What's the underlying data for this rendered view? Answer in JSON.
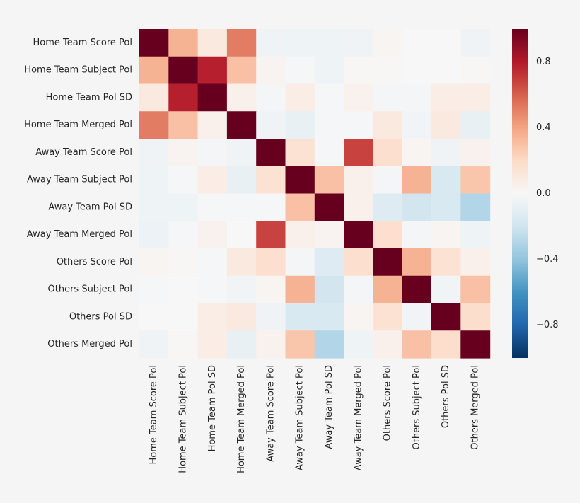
{
  "chart_data": {
    "type": "heatmap",
    "title": "",
    "xlabel": "",
    "ylabel": "",
    "row_labels": [
      "Home Team Score Pol",
      "Home Team Subject Pol",
      "Home Team Pol SD",
      "Home Team Merged Pol",
      "Away Team Score Pol",
      "Away Team Subject Pol",
      "Away Team Pol SD",
      "Away Team Merged Pol",
      "Others Score Pol",
      "Others Subject Pol",
      "Others Pol SD",
      "Others Merged Pol"
    ],
    "col_labels": [
      "Home Team Score Pol",
      "Home Team Subject Pol",
      "Home Team Pol SD",
      "Home Team Merged Pol",
      "Away Team Score Pol",
      "Away Team Subject Pol",
      "Away Team Pol SD",
      "Away Team Merged Pol",
      "Others Score Pol",
      "Others Subject Pol",
      "Others Pol SD",
      "Others Merged Pol"
    ],
    "values": [
      [
        1.0,
        0.35,
        0.1,
        0.52,
        -0.04,
        -0.05,
        -0.05,
        -0.04,
        0.02,
        0.0,
        0.0,
        -0.04
      ],
      [
        0.35,
        1.0,
        0.78,
        0.3,
        0.03,
        -0.01,
        -0.05,
        0.01,
        0.01,
        0.0,
        0.0,
        0.01
      ],
      [
        0.1,
        0.78,
        1.0,
        0.05,
        -0.02,
        0.07,
        -0.01,
        0.04,
        -0.02,
        -0.02,
        0.07,
        0.07
      ],
      [
        0.52,
        0.3,
        0.05,
        1.0,
        -0.04,
        -0.08,
        -0.01,
        -0.01,
        0.1,
        -0.03,
        0.1,
        -0.08
      ],
      [
        -0.04,
        0.03,
        -0.02,
        -0.04,
        1.0,
        0.15,
        -0.01,
        0.68,
        0.17,
        0.02,
        -0.04,
        0.04
      ],
      [
        -0.05,
        -0.01,
        0.07,
        -0.08,
        0.15,
        1.0,
        0.3,
        0.05,
        -0.02,
        0.35,
        -0.16,
        0.28
      ],
      [
        -0.05,
        -0.05,
        -0.01,
        -0.01,
        -0.01,
        0.3,
        1.0,
        0.05,
        -0.13,
        -0.19,
        -0.16,
        -0.3
      ],
      [
        -0.06,
        -0.01,
        0.04,
        0.0,
        0.68,
        0.05,
        0.03,
        1.0,
        0.17,
        -0.02,
        0.02,
        -0.05
      ],
      [
        0.02,
        0.01,
        -0.01,
        0.1,
        0.17,
        -0.02,
        -0.13,
        0.17,
        1.0,
        0.35,
        0.15,
        0.05
      ],
      [
        -0.01,
        0.0,
        -0.01,
        -0.03,
        0.02,
        0.35,
        -0.19,
        -0.02,
        0.35,
        1.0,
        -0.03,
        0.3
      ],
      [
        0.0,
        0.0,
        0.07,
        0.1,
        -0.04,
        -0.16,
        -0.16,
        0.02,
        0.15,
        -0.03,
        1.0,
        0.18
      ],
      [
        -0.04,
        0.01,
        0.07,
        -0.08,
        0.04,
        0.28,
        -0.3,
        -0.05,
        0.05,
        0.3,
        0.18,
        1.0
      ]
    ],
    "vmin": -1,
    "vmax": 1,
    "colormap": "RdBu_r",
    "colorbar": {
      "ticks": [
        0.8,
        0.4,
        0.0,
        -0.4,
        -0.8
      ],
      "tick_labels": [
        "0.8",
        "0.4",
        "0.0",
        "−0.4",
        "−0.8"
      ]
    },
    "grid": false,
    "legend": "colorbar-right"
  }
}
